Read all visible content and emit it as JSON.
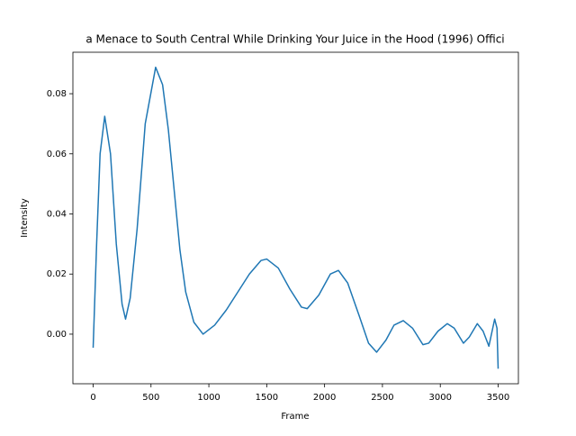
{
  "chart_data": {
    "type": "line",
    "title": "a Menace to South Central While Drinking Your Juice in the Hood (1996) Offici",
    "x_label": "Frame",
    "y_label": "Intensity",
    "x": [
      0,
      30,
      60,
      100,
      150,
      200,
      250,
      280,
      320,
      380,
      450,
      540,
      600,
      650,
      700,
      750,
      800,
      870,
      950,
      1050,
      1150,
      1250,
      1350,
      1450,
      1500,
      1600,
      1700,
      1800,
      1850,
      1950,
      2050,
      2120,
      2200,
      2300,
      2380,
      2450,
      2530,
      2600,
      2680,
      2760,
      2850,
      2900,
      2980,
      3060,
      3120,
      3200,
      3250,
      3320,
      3370,
      3420,
      3470,
      3490,
      3500
    ],
    "series": [
      {
        "name": "Intensity",
        "color": "#1f77b4",
        "values": [
          -0.0045,
          0.03,
          0.06,
          0.0725,
          0.06,
          0.03,
          0.01,
          0.005,
          0.012,
          0.035,
          0.07,
          0.0888,
          0.083,
          0.068,
          0.048,
          0.028,
          0.014,
          0.004,
          0.0,
          0.003,
          0.008,
          0.014,
          0.02,
          0.0245,
          0.025,
          0.022,
          0.015,
          0.009,
          0.0085,
          0.013,
          0.02,
          0.0212,
          0.017,
          0.006,
          -0.003,
          -0.006,
          -0.002,
          0.003,
          0.0045,
          0.002,
          -0.0035,
          -0.003,
          0.001,
          0.0035,
          0.002,
          -0.003,
          -0.001,
          0.0035,
          0.001,
          -0.004,
          0.005,
          0.002,
          -0.0115
        ]
      }
    ],
    "xlim": [
      -175,
      3675
    ],
    "ylim": [
      -0.0165,
      0.0938
    ],
    "xticks": [
      0,
      500,
      1000,
      1500,
      2000,
      2500,
      3000,
      3500
    ],
    "yticks": [
      {
        "value": 0,
        "label": "0.00"
      },
      {
        "value": 0.02,
        "label": "0.02"
      },
      {
        "value": 0.04,
        "label": "0.04"
      },
      {
        "value": 0.06,
        "label": "0.06"
      },
      {
        "value": 0.08,
        "label": "0.08"
      }
    ],
    "grid": false
  }
}
